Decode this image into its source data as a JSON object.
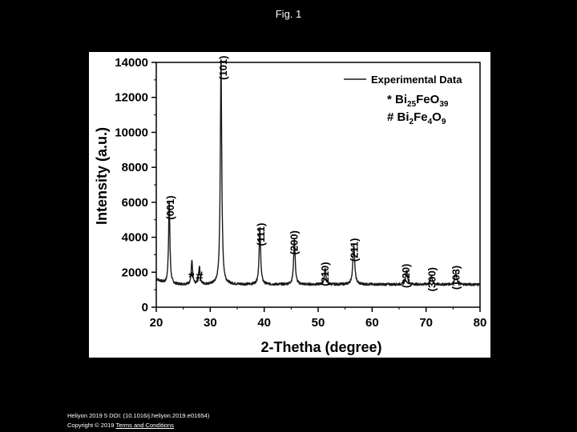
{
  "slide": {
    "title": "Fig. 1"
  },
  "footer": {
    "citation": "Heliyon 2019 5 DOI: (10.1016/j.heliyon.2019.e01654)",
    "copyright": "Copyright © 2019",
    "terms_link": "Terms and Conditions"
  },
  "chart_data": {
    "type": "line",
    "xlabel": "2-Thetha (degree)",
    "ylabel": "Intensity (a.u.)",
    "xlim": [
      20,
      80
    ],
    "ylim": [
      0,
      14000
    ],
    "x_ticks": [
      "20",
      "30",
      "40",
      "50",
      "60",
      "70",
      "80"
    ],
    "y_ticks": [
      "0",
      "2000",
      "4000",
      "6000",
      "8000",
      "10000",
      "12000",
      "14000"
    ],
    "grid": false,
    "legend_position": "top-right",
    "legend": {
      "line_label": "Experimental Data",
      "phase1": {
        "symbol": "*",
        "parts": [
          [
            "Bi",
            "n"
          ],
          [
            "25",
            "s"
          ],
          [
            "FeO",
            "n"
          ],
          [
            "39",
            "s"
          ]
        ]
      },
      "phase2": {
        "symbol": "#",
        "parts": [
          [
            "Bi",
            "n"
          ],
          [
            "2",
            "s"
          ],
          [
            "Fe",
            "n"
          ],
          [
            "4",
            "s"
          ],
          [
            "O",
            "n"
          ],
          [
            "9",
            "s"
          ]
        ]
      }
    },
    "colors": {
      "line": "#1a1a1a"
    },
    "series": [
      {
        "name": "Experimental Data",
        "baseline": 1300,
        "peaks": [
          {
            "x": 22.4,
            "height": 4700,
            "width": 0.15
          },
          {
            "x": 26.6,
            "height": 1350,
            "width": 0.15
          },
          {
            "x": 28.0,
            "height": 1050,
            "width": 0.15
          },
          {
            "x": 32.0,
            "height": 12800,
            "width": 0.16
          },
          {
            "x": 39.2,
            "height": 3200,
            "width": 0.17
          },
          {
            "x": 45.6,
            "height": 2600,
            "width": 0.17
          },
          {
            "x": 51.3,
            "height": 900,
            "width": 0.17
          },
          {
            "x": 56.6,
            "height": 2300,
            "width": 0.2
          },
          {
            "x": 66.4,
            "height": 850,
            "width": 0.2
          },
          {
            "x": 71.0,
            "height": 500,
            "width": 0.2
          },
          {
            "x": 75.5,
            "height": 700,
            "width": 0.2
          }
        ]
      }
    ],
    "annotations": [
      {
        "text": "(001)",
        "x": 22.5,
        "y": 5000,
        "rotated": true
      },
      {
        "text": "(101)",
        "x": 32.3,
        "y": 13000,
        "rotated": true
      },
      {
        "text": "(111)",
        "x": 39.3,
        "y": 3500,
        "rotated": true
      },
      {
        "text": "(200)",
        "x": 45.5,
        "y": 3000,
        "rotated": true
      },
      {
        "text": "(210)",
        "x": 51.2,
        "y": 1200,
        "rotated": true
      },
      {
        "text": "(211)",
        "x": 56.6,
        "y": 2600,
        "rotated": true
      },
      {
        "text": "(220)",
        "x": 66.2,
        "y": 1100,
        "rotated": true
      },
      {
        "text": "(300)",
        "x": 71.0,
        "y": 900,
        "rotated": true
      },
      {
        "text": "(103)",
        "x": 75.5,
        "y": 1000,
        "rotated": true
      },
      {
        "text": "*",
        "x": 26.5,
        "y": 1400,
        "rotated": false
      },
      {
        "text": "#",
        "x": 28.0,
        "y": 1500,
        "rotated": false
      }
    ]
  }
}
